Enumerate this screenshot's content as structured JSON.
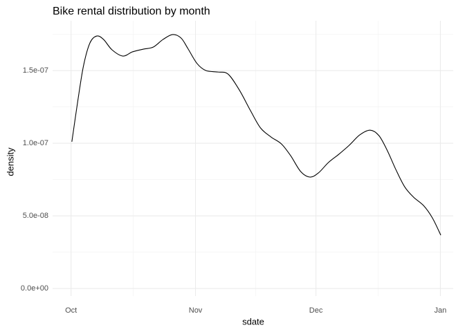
{
  "chart_data": {
    "type": "line",
    "title": "Bike rental distribution by month",
    "x_label": "sdate",
    "y_label": "density",
    "x": [
      0.2,
      1.7,
      3.1,
      4.7,
      6.4,
      8.1,
      10.2,
      12.9,
      15.3,
      18.1,
      20.5,
      22.9,
      25.3,
      27.4,
      29.1,
      31.4,
      33.6,
      36.6,
      39.1,
      41.9,
      44.7,
      47.2,
      49.8,
      52.4,
      54.7,
      57.2,
      59.5,
      61.6,
      64.1,
      66.7,
      69.3,
      71.9,
      74.5,
      76.7,
      78.8,
      80.9,
      83.1,
      85.3,
      87.8,
      90.0,
      92.1
    ],
    "series": [
      {
        "color": "#000000",
        "values": [
          1.01e-07,
          1.295e-07,
          1.533e-07,
          1.69e-07,
          1.738e-07,
          1.714e-07,
          1.643e-07,
          1.6e-07,
          1.629e-07,
          1.648e-07,
          1.662e-07,
          1.714e-07,
          1.748e-07,
          1.724e-07,
          1.652e-07,
          1.548e-07,
          1.5e-07,
          1.49e-07,
          1.476e-07,
          1.367e-07,
          1.224e-07,
          1.105e-07,
          1.043e-07,
          9.95e-08,
          9.14e-08,
          8.05e-08,
          7.67e-08,
          7.95e-08,
          8.67e-08,
          9.24e-08,
          9.86e-08,
          1.057e-07,
          1.09e-07,
          1.052e-07,
          9.48e-08,
          8.19e-08,
          7e-08,
          6.29e-08,
          5.71e-08,
          4.86e-08,
          3.67e-08
        ]
      }
    ],
    "xlim": [
      -4.6,
      95.2
    ],
    "xticks": [
      {
        "value": 0,
        "label": "Oct"
      },
      {
        "value": 31,
        "label": "Nov"
      },
      {
        "value": 61,
        "label": "Dec"
      },
      {
        "value": 92,
        "label": "Jan"
      }
    ],
    "ylim": [
      -5.2e-09,
      1.843e-07
    ],
    "yticks": [
      {
        "value": 0,
        "label": "0.0e+00"
      },
      {
        "value": 5e-08,
        "label": "5.0e-08"
      },
      {
        "value": 1e-07,
        "label": "1.0e-07"
      },
      {
        "value": 1.5e-07,
        "label": "1.5e-07"
      }
    ],
    "grid": true
  }
}
